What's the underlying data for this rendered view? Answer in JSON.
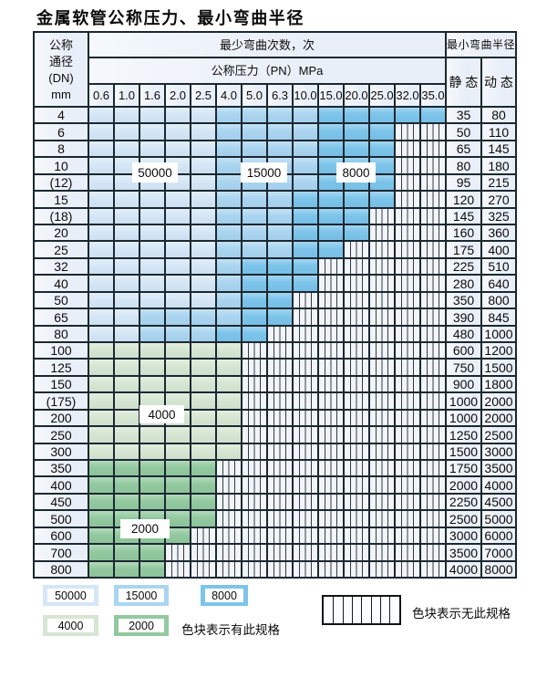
{
  "title": "金属软管公称压力、最小弯曲半径",
  "table": {
    "corner_lines": [
      "公称",
      "通径",
      "(DN)",
      "mm"
    ],
    "cycles_header": "最少弯曲次数，次",
    "pressure_header": "公称压力（PN）MPa",
    "pressure_columns": [
      "0.6",
      "1.0",
      "1.6",
      "2.0",
      "2.5",
      "4.0",
      "5.0",
      "6.3",
      "10.0",
      "15.0",
      "20.0",
      "25.0",
      "32.0",
      "35.0"
    ],
    "radius_header": "最小弯曲半径",
    "static_header": "静 态",
    "dynamic_header": "动 态",
    "rows": [
      {
        "dn": "4",
        "static": "35",
        "dynamic": "80",
        "segments": [
          [
            "50000",
            0,
            4
          ],
          [
            "15000",
            5,
            8
          ],
          [
            "8000",
            9,
            13
          ]
        ]
      },
      {
        "dn": "6",
        "static": "50",
        "dynamic": "110",
        "segments": [
          [
            "50000",
            0,
            4
          ],
          [
            "15000",
            5,
            8
          ],
          [
            "8000",
            9,
            11
          ]
        ]
      },
      {
        "dn": "8",
        "static": "65",
        "dynamic": "145",
        "segments": [
          [
            "50000",
            0,
            4
          ],
          [
            "15000",
            5,
            8
          ],
          [
            "8000",
            9,
            11
          ]
        ]
      },
      {
        "dn": "10",
        "static": "80",
        "dynamic": "180",
        "segments": [
          [
            "50000",
            0,
            4
          ],
          [
            "15000",
            5,
            8
          ],
          [
            "8000",
            9,
            11
          ]
        ]
      },
      {
        "dn": "(12)",
        "static": "95",
        "dynamic": "215",
        "segments": [
          [
            "50000",
            0,
            4
          ],
          [
            "15000",
            5,
            8
          ],
          [
            "8000",
            9,
            11
          ]
        ]
      },
      {
        "dn": "15",
        "static": "120",
        "dynamic": "270",
        "segments": [
          [
            "50000",
            0,
            4
          ],
          [
            "15000",
            5,
            7
          ],
          [
            "8000",
            8,
            11
          ]
        ]
      },
      {
        "dn": "(18)",
        "static": "145",
        "dynamic": "325",
        "segments": [
          [
            "50000",
            0,
            4
          ],
          [
            "15000",
            5,
            7
          ],
          [
            "8000",
            8,
            10
          ]
        ]
      },
      {
        "dn": "20",
        "static": "160",
        "dynamic": "360",
        "segments": [
          [
            "50000",
            0,
            4
          ],
          [
            "15000",
            5,
            7
          ],
          [
            "8000",
            8,
            10
          ]
        ]
      },
      {
        "dn": "25",
        "static": "175",
        "dynamic": "400",
        "segments": [
          [
            "50000",
            0,
            4
          ],
          [
            "15000",
            5,
            7
          ],
          [
            "8000",
            8,
            9
          ]
        ]
      },
      {
        "dn": "32",
        "static": "225",
        "dynamic": "510",
        "segments": [
          [
            "50000",
            0,
            4
          ],
          [
            "15000",
            5,
            5
          ],
          [
            "8000",
            6,
            8
          ]
        ]
      },
      {
        "dn": "40",
        "static": "280",
        "dynamic": "640",
        "segments": [
          [
            "50000",
            0,
            4
          ],
          [
            "15000",
            5,
            5
          ],
          [
            "8000",
            6,
            8
          ]
        ]
      },
      {
        "dn": "50",
        "static": "350",
        "dynamic": "800",
        "segments": [
          [
            "50000",
            0,
            4
          ],
          [
            "15000",
            5,
            5
          ],
          [
            "8000",
            6,
            7
          ]
        ]
      },
      {
        "dn": "65",
        "static": "390",
        "dynamic": "845",
        "segments": [
          [
            "50000",
            0,
            1
          ],
          [
            "15000",
            2,
            5
          ],
          [
            "8000",
            6,
            7
          ]
        ]
      },
      {
        "dn": "80",
        "static": "480",
        "dynamic": "1000",
        "segments": [
          [
            "50000",
            0,
            1
          ],
          [
            "15000",
            2,
            4
          ],
          [
            "8000",
            5,
            6
          ]
        ]
      },
      {
        "dn": "100",
        "static": "600",
        "dynamic": "1200",
        "segments": [
          [
            "4000",
            0,
            5
          ]
        ]
      },
      {
        "dn": "125",
        "static": "750",
        "dynamic": "1500",
        "segments": [
          [
            "4000",
            0,
            5
          ]
        ]
      },
      {
        "dn": "150",
        "static": "900",
        "dynamic": "1800",
        "segments": [
          [
            "4000",
            0,
            5
          ]
        ]
      },
      {
        "dn": "(175)",
        "static": "1000",
        "dynamic": "2000",
        "segments": [
          [
            "4000",
            0,
            5
          ]
        ]
      },
      {
        "dn": "200",
        "static": "1000",
        "dynamic": "2000",
        "segments": [
          [
            "4000",
            0,
            5
          ]
        ]
      },
      {
        "dn": "250",
        "static": "1250",
        "dynamic": "2500",
        "segments": [
          [
            "4000",
            0,
            5
          ]
        ]
      },
      {
        "dn": "300",
        "static": "1500",
        "dynamic": "3000",
        "segments": [
          [
            "4000",
            0,
            5
          ]
        ]
      },
      {
        "dn": "350",
        "static": "1750",
        "dynamic": "3500",
        "segments": [
          [
            "2000",
            0,
            4
          ]
        ]
      },
      {
        "dn": "400",
        "static": "2000",
        "dynamic": "4000",
        "segments": [
          [
            "2000",
            0,
            4
          ]
        ]
      },
      {
        "dn": "450",
        "static": "2250",
        "dynamic": "4500",
        "segments": [
          [
            "2000",
            0,
            4
          ]
        ]
      },
      {
        "dn": "500",
        "static": "2500",
        "dynamic": "5000",
        "segments": [
          [
            "2000",
            0,
            4
          ]
        ]
      },
      {
        "dn": "600",
        "static": "3000",
        "dynamic": "6000",
        "segments": [
          [
            "2000",
            0,
            3
          ]
        ]
      },
      {
        "dn": "700",
        "static": "3500",
        "dynamic": "7000",
        "segments": [
          [
            "2000",
            0,
            2
          ]
        ]
      },
      {
        "dn": "800",
        "static": "4000",
        "dynamic": "8000",
        "segments": [
          [
            "2000",
            0,
            2
          ]
        ]
      }
    ]
  },
  "grid_labels": [
    {
      "text": "50000"
    },
    {
      "text": "15000"
    },
    {
      "text": "8000"
    },
    {
      "text": "4000"
    },
    {
      "text": "2000"
    }
  ],
  "legend": {
    "swatches": [
      {
        "label": "50000",
        "color": "50000"
      },
      {
        "label": "15000",
        "color": "15000"
      },
      {
        "label": "8000",
        "color": "8000"
      },
      {
        "label": "4000",
        "color": "4000"
      },
      {
        "label": "2000",
        "color": "2000"
      }
    ],
    "has_spec_text": "色块表示有此规格",
    "no_spec_text": "色块表示无此规格"
  },
  "colors": {
    "50000": "#d5e7f6",
    "15000": "#aad5f0",
    "8000": "#7cc4ea",
    "4000": "#d6e6d2",
    "2000": "#92c99e",
    "hatch_bg": "#eff3f9",
    "grid_line": "#1b2831",
    "pale_bg": "#e9eff8"
  }
}
